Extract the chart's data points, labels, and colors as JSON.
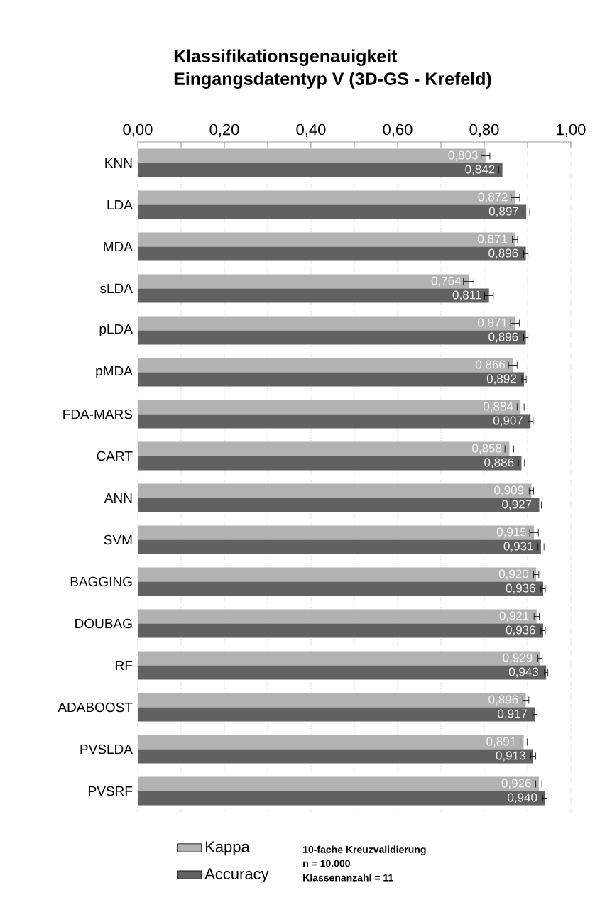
{
  "chart_data": {
    "type": "bar",
    "orientation": "horizontal",
    "title": "Klassifikationsgenauigkeit",
    "subtitle": "Eingangsdatentyp  V (3D-GS - Krefeld)",
    "categories": [
      "KNN",
      "LDA",
      "MDA",
      "sLDA",
      "pLDA",
      "pMDA",
      "FDA-MARS",
      "CART",
      "ANN",
      "SVM",
      "BAGGING",
      "DOUBAG",
      "RF",
      "ADABOOST",
      "PVSLDA",
      "PVSRF"
    ],
    "series": [
      {
        "name": "Kappa",
        "color": "#b2b2b2",
        "values": [
          0.803,
          0.872,
          0.871,
          0.764,
          0.871,
          0.866,
          0.884,
          0.858,
          0.909,
          0.915,
          0.92,
          0.921,
          0.929,
          0.896,
          0.891,
          0.926
        ],
        "value_labels": [
          "0,803",
          "0,872",
          "0,871",
          "0,764",
          "0,871",
          "0,866",
          "0,884",
          "0,858",
          "0,909",
          "0,915",
          "0,920",
          "0,921",
          "0,929",
          "0,896",
          "0,891",
          "0,926"
        ],
        "errors": [
          0.01,
          0.01,
          0.006,
          0.012,
          0.01,
          0.01,
          0.008,
          0.01,
          0.005,
          0.01,
          0.006,
          0.006,
          0.005,
          0.007,
          0.008,
          0.007
        ]
      },
      {
        "name": "Accuracy",
        "color": "#616161",
        "values": [
          0.842,
          0.897,
          0.896,
          0.811,
          0.896,
          0.892,
          0.907,
          0.886,
          0.927,
          0.931,
          0.936,
          0.936,
          0.943,
          0.917,
          0.913,
          0.94
        ],
        "value_labels": [
          "0,842",
          "0,897",
          "0,896",
          "0,811",
          "0,896",
          "0,892",
          "0,907",
          "0,886",
          "0,927",
          "0,931",
          "0,936",
          "0,936",
          "0,943",
          "0,917",
          "0,913",
          "0,940"
        ],
        "errors": [
          0.008,
          0.008,
          0.005,
          0.01,
          0.005,
          0.005,
          0.006,
          0.007,
          0.005,
          0.007,
          0.005,
          0.005,
          0.004,
          0.005,
          0.006,
          0.005
        ]
      }
    ],
    "xlim": [
      0,
      1
    ],
    "xticks": [
      {
        "value": 0,
        "label": "0,00"
      },
      {
        "value": 0.1,
        "label": null
      },
      {
        "value": 0.2,
        "label": "0,20"
      },
      {
        "value": 0.3,
        "label": null
      },
      {
        "value": 0.4,
        "label": "0,40"
      },
      {
        "value": 0.5,
        "label": null
      },
      {
        "value": 0.6,
        "label": "0,60"
      },
      {
        "value": 0.7,
        "label": null
      },
      {
        "value": 0.8,
        "label": "0,80"
      },
      {
        "value": 0.9,
        "label": null
      },
      {
        "value": 1,
        "label": "1,00"
      }
    ],
    "grid": "x",
    "legend": "bottom left",
    "annotations": [
      "10-fache Kreuzvalidierung",
      "n = 10.000",
      "Klassenanzahl  = 11"
    ]
  }
}
